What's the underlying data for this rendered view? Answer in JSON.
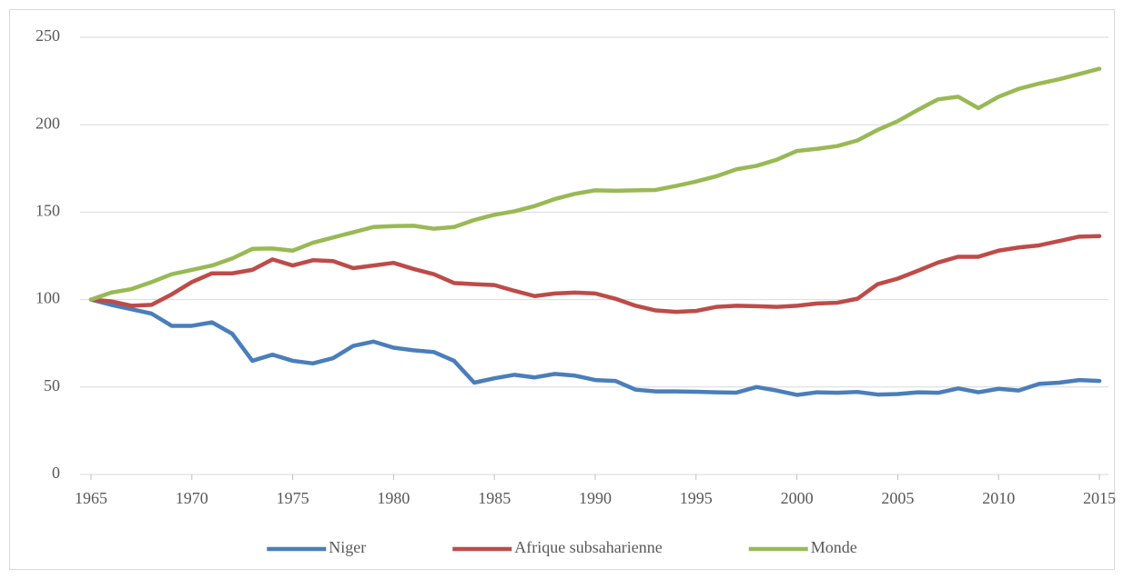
{
  "chart_data": {
    "type": "line",
    "x": [
      1965,
      1966,
      1967,
      1968,
      1969,
      1970,
      1971,
      1972,
      1973,
      1974,
      1975,
      1976,
      1977,
      1978,
      1979,
      1980,
      1981,
      1982,
      1983,
      1984,
      1985,
      1986,
      1987,
      1988,
      1989,
      1990,
      1991,
      1992,
      1993,
      1994,
      1995,
      1996,
      1997,
      1998,
      1999,
      2000,
      2001,
      2002,
      2003,
      2004,
      2005,
      2006,
      2007,
      2008,
      2009,
      2010,
      2011,
      2012,
      2013,
      2014,
      2015
    ],
    "series": [
      {
        "name": "Niger",
        "color": "#4a7ebb",
        "values": [
          100,
          97,
          94.5,
          92,
          85,
          85,
          87,
          80.5,
          65,
          68.5,
          65,
          63.5,
          66.5,
          73.5,
          76,
          72.5,
          71,
          70,
          65,
          52.5,
          55,
          57,
          55.5,
          57.5,
          56.5,
          54,
          53.5,
          48.5,
          47.5,
          47.5,
          47.3,
          47,
          46.8,
          50,
          48,
          45.5,
          47,
          46.7,
          47.2,
          45.7,
          46,
          47,
          46.7,
          49.2,
          47,
          49,
          48,
          51.8,
          52.5,
          54,
          53.5
        ]
      },
      {
        "name": "Afrique subsaharienne",
        "color": "#be4b48",
        "values": [
          100,
          99,
          96.5,
          97,
          103,
          110,
          115,
          115,
          117,
          123,
          119.5,
          122.5,
          122,
          118,
          119.5,
          121,
          117.5,
          114.5,
          109.5,
          108.8,
          108.3,
          105,
          102,
          103.5,
          104,
          103.5,
          100.5,
          96.5,
          93.8,
          93,
          93.5,
          95.8,
          96.5,
          96.2,
          95.8,
          96.5,
          97.8,
          98.2,
          100.5,
          108.8,
          112,
          116.5,
          121.2,
          124.5,
          124.5,
          128,
          129.8,
          131,
          133.5,
          136,
          136.3
        ]
      },
      {
        "name": "Monde",
        "color": "#98b954",
        "values": [
          100,
          104,
          106,
          110,
          114.5,
          117,
          119.5,
          123.5,
          129,
          129.2,
          128,
          132.5,
          135.5,
          138.5,
          141.5,
          142,
          142.2,
          140.5,
          141.5,
          145.5,
          148.5,
          150.5,
          153.5,
          157.5,
          160.5,
          162.5,
          162.2,
          162.5,
          162.7,
          165,
          167.5,
          170.5,
          174.5,
          176.5,
          180,
          185,
          186.2,
          187.8,
          191,
          197,
          202,
          208.5,
          214.5,
          216,
          209.5,
          216,
          220.5,
          223.5,
          226,
          229,
          232
        ]
      }
    ],
    "xlim": [
      1965,
      2015
    ],
    "xticks": [
      1965,
      1970,
      1975,
      1980,
      1985,
      1990,
      1995,
      2000,
      2005,
      2010,
      2015
    ],
    "ylim": [
      0,
      250
    ],
    "yticks": [
      0,
      50,
      100,
      150,
      200,
      250
    ],
    "grid": true,
    "legend": "bottom"
  }
}
